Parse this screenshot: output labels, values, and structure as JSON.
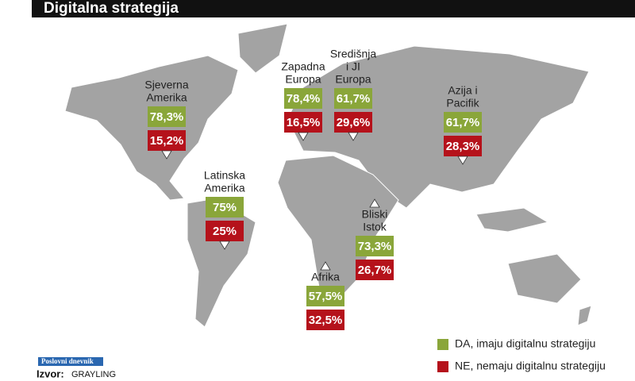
{
  "header": {
    "title": "Digitalna strategija"
  },
  "regions": [
    {
      "name": [
        "Sjeverna",
        "Amerika"
      ],
      "yes": "78,3%",
      "no": "15,2%"
    },
    {
      "name": [
        "Latinska",
        "Amerika"
      ],
      "yes": "75%",
      "no": "25%"
    },
    {
      "name": [
        "Zapadna",
        "Europa"
      ],
      "yes": "78,4%",
      "no": "16,5%"
    },
    {
      "name": [
        "Središnja",
        "i JI",
        "Europa"
      ],
      "yes": "61,7%",
      "no": "29,6%"
    },
    {
      "name": [
        "Azija i",
        "Pacifik"
      ],
      "yes": "61,7%",
      "no": "28,3%"
    },
    {
      "name": [
        "Bliski",
        "Istok"
      ],
      "yes": "73,3%",
      "no": "26,7%"
    },
    {
      "name": [
        "Afrika"
      ],
      "yes": "57,5%",
      "no": "32,5%"
    }
  ],
  "legend": {
    "yes": "DA, imaju digitalnu strategiju",
    "no": "NE, nemaju digitalnu strategiju"
  },
  "footer": {
    "logo": "Poslovni dnevnik",
    "source_label": "Izvor:",
    "source": "GRAYLING"
  }
}
